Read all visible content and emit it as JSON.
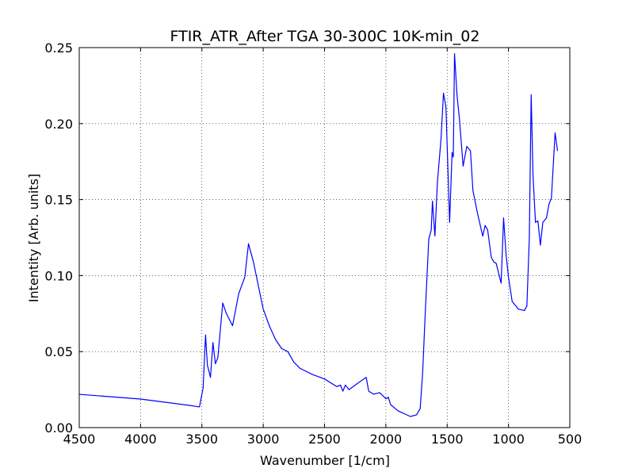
{
  "chart_data": {
    "type": "line",
    "title": "FTIR_ATR_After TGA 30-300C 10K-min_02",
    "xlabel": "Wavenumber [1/cm]",
    "ylabel": "Intentity [Arb. units]",
    "color": "#0000ff",
    "grid": true,
    "xlim": [
      4500,
      500
    ],
    "ylim": [
      0,
      0.25
    ],
    "xticks": [
      4500,
      4000,
      3500,
      3000,
      2500,
      2000,
      1500,
      1000,
      500
    ],
    "yticks": [
      {
        "value": 0,
        "label": "0.00"
      },
      {
        "value": 0.05,
        "label": "0.05"
      },
      {
        "value": 0.1,
        "label": "0.10"
      },
      {
        "value": 0.15,
        "label": "0.15"
      },
      {
        "value": 0.2,
        "label": "0.20"
      },
      {
        "value": 0.25,
        "label": "0.25"
      }
    ],
    "x": [
      4500,
      4000,
      3800,
      3600,
      3520,
      3490,
      3470,
      3455,
      3430,
      3410,
      3390,
      3370,
      3330,
      3300,
      3250,
      3200,
      3150,
      3120,
      3080,
      3000,
      2950,
      2900,
      2850,
      2800,
      2750,
      2700,
      2600,
      2500,
      2400,
      2370,
      2350,
      2330,
      2300,
      2250,
      2180,
      2160,
      2140,
      2100,
      2050,
      2000,
      1980,
      1960,
      1900,
      1800,
      1750,
      1720,
      1700,
      1680,
      1650,
      1630,
      1620,
      1600,
      1580,
      1550,
      1530,
      1510,
      1480,
      1460,
      1450,
      1440,
      1420,
      1400,
      1370,
      1340,
      1310,
      1290,
      1250,
      1210,
      1190,
      1170,
      1140,
      1120,
      1100,
      1060,
      1040,
      1020,
      1000,
      970,
      920,
      870,
      850,
      830,
      815,
      800,
      780,
      760,
      740,
      720,
      690,
      670,
      650,
      620,
      600
    ],
    "values": [
      0.0219,
      0.0188,
      0.0167,
      0.0146,
      0.0136,
      0.026,
      0.061,
      0.041,
      0.033,
      0.056,
      0.042,
      0.046,
      0.082,
      0.075,
      0.067,
      0.088,
      0.099,
      0.121,
      0.109,
      0.078,
      0.067,
      0.058,
      0.052,
      0.05,
      0.043,
      0.039,
      0.035,
      0.032,
      0.027,
      0.028,
      0.024,
      0.028,
      0.025,
      0.028,
      0.032,
      0.033,
      0.024,
      0.022,
      0.023,
      0.019,
      0.02,
      0.015,
      0.011,
      0.0073,
      0.0084,
      0.0125,
      0.036,
      0.073,
      0.124,
      0.13,
      0.149,
      0.126,
      0.161,
      0.19,
      0.22,
      0.211,
      0.135,
      0.181,
      0.178,
      0.246,
      0.219,
      0.203,
      0.172,
      0.185,
      0.182,
      0.156,
      0.14,
      0.126,
      0.133,
      0.13,
      0.112,
      0.109,
      0.108,
      0.095,
      0.138,
      0.114,
      0.099,
      0.083,
      0.078,
      0.077,
      0.08,
      0.125,
      0.219,
      0.166,
      0.135,
      0.136,
      0.12,
      0.135,
      0.138,
      0.147,
      0.151,
      0.194,
      0.182
    ]
  }
}
